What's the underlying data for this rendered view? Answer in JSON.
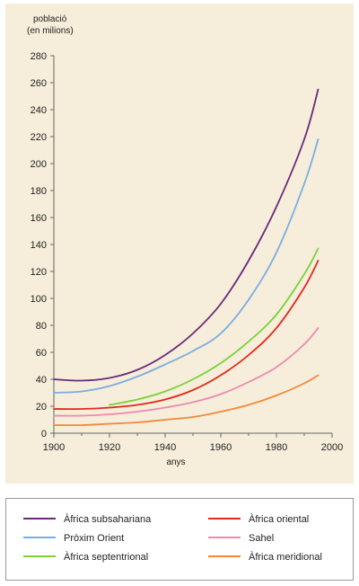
{
  "chart_data": {
    "type": "line",
    "ylabel_line1": "població",
    "ylabel_line2": "(en milions)",
    "xlabel": "anys",
    "xlim": [
      1900,
      2000
    ],
    "ylim": [
      0,
      280
    ],
    "x_ticks": [
      1900,
      1920,
      1940,
      1960,
      1980,
      2000
    ],
    "y_ticks": [
      0,
      20,
      40,
      60,
      80,
      100,
      120,
      140,
      160,
      180,
      200,
      220,
      240,
      260,
      280
    ],
    "legend_position": "below",
    "series": [
      {
        "name": "Àfrica subsahariana",
        "color": "#6a2a7a",
        "x": [
          1900,
          1910,
          1920,
          1930,
          1940,
          1950,
          1960,
          1970,
          1980,
          1990,
          1995
        ],
        "y": [
          40,
          39,
          41,
          47,
          58,
          74,
          96,
          128,
          168,
          218,
          255
        ]
      },
      {
        "name": "Pròxim Orient",
        "color": "#7aaee0",
        "x": [
          1900,
          1910,
          1920,
          1930,
          1940,
          1950,
          1960,
          1970,
          1980,
          1990,
          1995
        ],
        "y": [
          30,
          31,
          35,
          42,
          51,
          61,
          74,
          99,
          134,
          185,
          218
        ]
      },
      {
        "name": "Àfrica oriental",
        "color": "#e12a1d",
        "x": [
          1900,
          1910,
          1920,
          1930,
          1940,
          1950,
          1960,
          1970,
          1980,
          1990,
          1995
        ],
        "y": [
          18,
          18,
          19,
          21,
          25,
          32,
          43,
          58,
          78,
          108,
          128
        ]
      },
      {
        "name": "Àfrica septentrional",
        "color": "#7ad13a",
        "x": [
          1920,
          1930,
          1940,
          1950,
          1960,
          1970,
          1980,
          1990,
          1995
        ],
        "y": [
          21,
          25,
          31,
          40,
          52,
          68,
          88,
          118,
          137
        ]
      },
      {
        "name": "Sahel",
        "color": "#ea8bb0",
        "x": [
          1900,
          1910,
          1920,
          1930,
          1940,
          1950,
          1960,
          1970,
          1980,
          1990,
          1995
        ],
        "y": [
          13,
          13,
          14,
          16,
          19,
          23,
          29,
          38,
          49,
          66,
          78
        ]
      },
      {
        "name": "Àfrica meridional",
        "color": "#f08a3a",
        "x": [
          1900,
          1910,
          1920,
          1930,
          1940,
          1950,
          1960,
          1970,
          1980,
          1990,
          1995
        ],
        "y": [
          6,
          6,
          7,
          8,
          10,
          12,
          16,
          21,
          28,
          37,
          43
        ]
      }
    ]
  }
}
